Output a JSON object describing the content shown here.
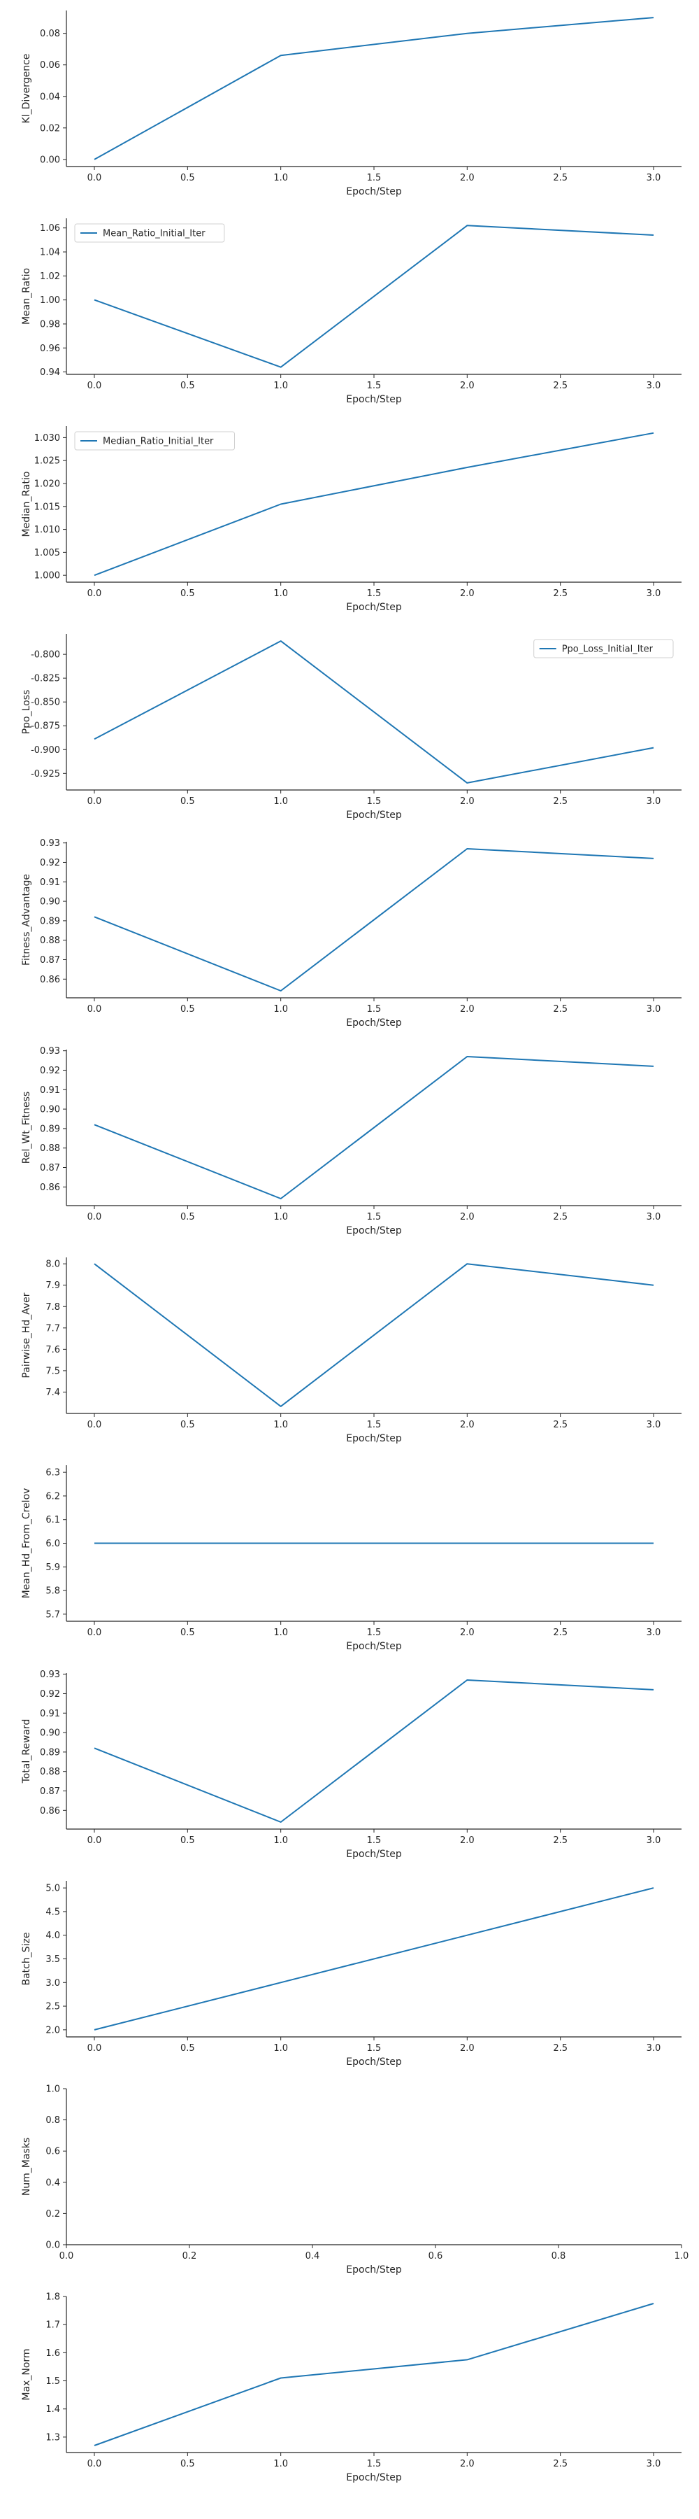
{
  "style": {
    "line_color": "#1f77b4",
    "axis_color": "#262626"
  },
  "chart_data": [
    {
      "type": "line",
      "xlabel": "Epoch/Step",
      "ylabel": "Kl_Divergence",
      "x": [
        0,
        1,
        2,
        3
      ],
      "values": [
        0.0,
        0.066,
        0.08,
        0.09
      ],
      "xlim": [
        -0.15,
        3.15
      ],
      "ylim": [
        -0.0045,
        0.0945
      ],
      "xticks": [
        "0.0",
        "0.5",
        "1.0",
        "1.5",
        "2.0",
        "2.5",
        "3.0"
      ],
      "yticks": [
        "0.00",
        "0.02",
        "0.04",
        "0.06",
        "0.08"
      ],
      "legend": ""
    },
    {
      "type": "line",
      "xlabel": "Epoch/Step",
      "ylabel": "Mean_Ratio",
      "x": [
        0,
        1,
        2,
        3
      ],
      "values": [
        1.0,
        0.944,
        1.062,
        1.054
      ],
      "xlim": [
        -0.15,
        3.15
      ],
      "ylim": [
        0.938,
        1.068
      ],
      "xticks": [
        "0.0",
        "0.5",
        "1.0",
        "1.5",
        "2.0",
        "2.5",
        "3.0"
      ],
      "yticks": [
        "0.94",
        "0.96",
        "0.98",
        "1.00",
        "1.02",
        "1.04",
        "1.06"
      ],
      "legend": "Mean_Ratio_Initial_Iter",
      "legend_position": "upper-left"
    },
    {
      "type": "line",
      "xlabel": "Epoch/Step",
      "ylabel": "Median_Ratio",
      "x": [
        0,
        1,
        2,
        3
      ],
      "values": [
        1.0,
        1.0155,
        1.0235,
        1.031
      ],
      "xlim": [
        -0.15,
        3.15
      ],
      "ylim": [
        0.9985,
        1.0325
      ],
      "xticks": [
        "0.0",
        "0.5",
        "1.0",
        "1.5",
        "2.0",
        "2.5",
        "3.0"
      ],
      "yticks": [
        "1.000",
        "1.005",
        "1.010",
        "1.015",
        "1.020",
        "1.025",
        "1.030"
      ],
      "legend": "Median_Ratio_Initial_Iter",
      "legend_position": "upper-left"
    },
    {
      "type": "line",
      "xlabel": "Epoch/Step",
      "ylabel": "Ppo_Loss",
      "x": [
        0,
        1,
        2,
        3
      ],
      "values": [
        -0.889,
        -0.786,
        -0.935,
        -0.898
      ],
      "xlim": [
        -0.15,
        3.15
      ],
      "ylim": [
        -0.9424,
        -0.7786
      ],
      "xticks": [
        "0.0",
        "0.5",
        "1.0",
        "1.5",
        "2.0",
        "2.5",
        "3.0"
      ],
      "yticks": [
        "-0.925",
        "-0.900",
        "-0.875",
        "-0.850",
        "-0.825",
        "-0.800"
      ],
      "legend": "Ppo_Loss_Initial_Iter",
      "legend_position": "upper-right"
    },
    {
      "type": "line",
      "xlabel": "Epoch/Step",
      "ylabel": "Fitness_Advantage",
      "x": [
        0,
        1,
        2,
        3
      ],
      "values": [
        0.892,
        0.854,
        0.927,
        0.922
      ],
      "xlim": [
        -0.15,
        3.15
      ],
      "ylim": [
        0.8504,
        0.9306
      ],
      "xticks": [
        "0.0",
        "0.5",
        "1.0",
        "1.5",
        "2.0",
        "2.5",
        "3.0"
      ],
      "yticks": [
        "0.86",
        "0.87",
        "0.88",
        "0.89",
        "0.90",
        "0.91",
        "0.92",
        "0.93"
      ],
      "legend": ""
    },
    {
      "type": "line",
      "xlabel": "Epoch/Step",
      "ylabel": "Rel_Wt_Fitness",
      "x": [
        0,
        1,
        2,
        3
      ],
      "values": [
        0.892,
        0.854,
        0.927,
        0.922
      ],
      "xlim": [
        -0.15,
        3.15
      ],
      "ylim": [
        0.8504,
        0.9306
      ],
      "xticks": [
        "0.0",
        "0.5",
        "1.0",
        "1.5",
        "2.0",
        "2.5",
        "3.0"
      ],
      "yticks": [
        "0.86",
        "0.87",
        "0.88",
        "0.89",
        "0.90",
        "0.91",
        "0.92",
        "0.93"
      ],
      "legend": ""
    },
    {
      "type": "line",
      "xlabel": "Epoch/Step",
      "ylabel": "Pairwise_Hd_Aver",
      "x": [
        0,
        1,
        2,
        3
      ],
      "values": [
        8.0,
        7.333,
        8.0,
        7.9
      ],
      "xlim": [
        -0.15,
        3.15
      ],
      "ylim": [
        7.3,
        8.03
      ],
      "xticks": [
        "0.0",
        "0.5",
        "1.0",
        "1.5",
        "2.0",
        "2.5",
        "3.0"
      ],
      "yticks": [
        "7.4",
        "7.5",
        "7.6",
        "7.7",
        "7.8",
        "7.9",
        "8.0"
      ],
      "legend": ""
    },
    {
      "type": "line",
      "xlabel": "Epoch/Step",
      "ylabel": "Mean_Hd_From_Crelov",
      "x": [
        0,
        1,
        2,
        3
      ],
      "values": [
        6.0,
        6.0,
        6.0,
        6.0
      ],
      "xlim": [
        -0.15,
        3.15
      ],
      "ylim": [
        5.67,
        6.33
      ],
      "xticks": [
        "0.0",
        "0.5",
        "1.0",
        "1.5",
        "2.0",
        "2.5",
        "3.0"
      ],
      "yticks": [
        "5.7",
        "5.8",
        "5.9",
        "6.0",
        "6.1",
        "6.2",
        "6.3"
      ],
      "legend": ""
    },
    {
      "type": "line",
      "xlabel": "Epoch/Step",
      "ylabel": "Total_Reward",
      "x": [
        0,
        1,
        2,
        3
      ],
      "values": [
        0.892,
        0.854,
        0.927,
        0.922
      ],
      "xlim": [
        -0.15,
        3.15
      ],
      "ylim": [
        0.8504,
        0.9306
      ],
      "xticks": [
        "0.0",
        "0.5",
        "1.0",
        "1.5",
        "2.0",
        "2.5",
        "3.0"
      ],
      "yticks": [
        "0.86",
        "0.87",
        "0.88",
        "0.89",
        "0.90",
        "0.91",
        "0.92",
        "0.93"
      ],
      "legend": ""
    },
    {
      "type": "line",
      "xlabel": "Epoch/Step",
      "ylabel": "Batch_Size",
      "x": [
        0,
        1,
        2,
        3
      ],
      "values": [
        2.0,
        3.0,
        4.0,
        5.0
      ],
      "xlim": [
        -0.15,
        3.15
      ],
      "ylim": [
        1.85,
        5.15
      ],
      "xticks": [
        "0.0",
        "0.5",
        "1.0",
        "1.5",
        "2.0",
        "2.5",
        "3.0"
      ],
      "yticks": [
        "2.0",
        "2.5",
        "3.0",
        "3.5",
        "4.0",
        "4.5",
        "5.0"
      ],
      "legend": ""
    },
    {
      "type": "line",
      "xlabel": "Epoch/Step",
      "ylabel": "Num_Masks",
      "x": [],
      "values": [],
      "xlim": [
        0,
        1
      ],
      "ylim": [
        0,
        1
      ],
      "xticks": [
        "0.0",
        "0.2",
        "0.4",
        "0.6",
        "0.8",
        "1.0"
      ],
      "yticks": [
        "0.0",
        "0.2",
        "0.4",
        "0.6",
        "0.8",
        "1.0"
      ],
      "legend": ""
    },
    {
      "type": "line",
      "xlabel": "Epoch/Step",
      "ylabel": "Max_Norm",
      "x": [
        0,
        1,
        2,
        3
      ],
      "values": [
        1.27,
        1.51,
        1.575,
        1.775
      ],
      "xlim": [
        -0.15,
        3.15
      ],
      "ylim": [
        1.245,
        1.8
      ],
      "xticks": [
        "0.0",
        "0.5",
        "1.0",
        "1.5",
        "2.0",
        "2.5",
        "3.0"
      ],
      "yticks": [
        "1.3",
        "1.4",
        "1.5",
        "1.6",
        "1.7",
        "1.8"
      ],
      "legend": ""
    }
  ]
}
